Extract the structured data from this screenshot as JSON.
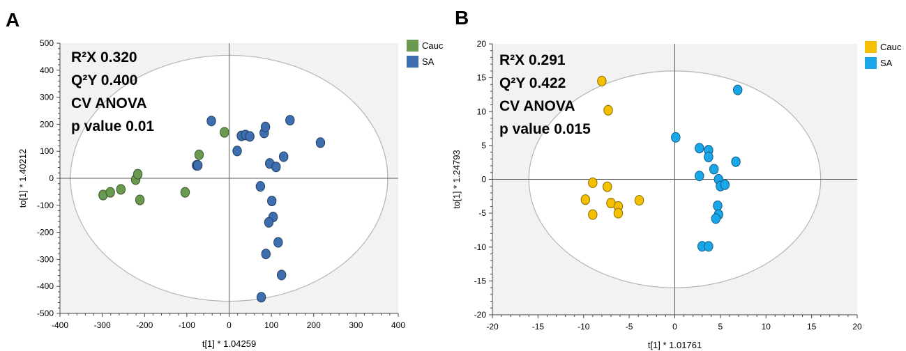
{
  "chart_data": [
    {
      "type": "scatter",
      "panel_label": "A",
      "xlabel": "t[1] * 1.04259",
      "ylabel": "to[1] * 1.40212",
      "xlim": [
        -400,
        400
      ],
      "ylim": [
        -500,
        500
      ],
      "xticks": [
        -400,
        -300,
        -200,
        -100,
        0,
        100,
        200,
        300,
        400
      ],
      "yticks": [
        -500,
        -400,
        -300,
        -200,
        -100,
        0,
        100,
        200,
        300,
        400,
        500
      ],
      "ellipse": {
        "rx": 375,
        "ry": 455
      },
      "grid": false,
      "legend_position": "top-right",
      "annotations": [
        "R²X 0.320",
        "Q²Y 0.400",
        "CV ANOVA",
        "p value 0.01"
      ],
      "series": [
        {
          "name": "Cauc",
          "color": "#6a9a4f",
          "points": [
            [
              -298,
              -62
            ],
            [
              -281,
              -52
            ],
            [
              -256,
              -41
            ],
            [
              -221,
              -5
            ],
            [
              -216,
              15
            ],
            [
              -211,
              -80
            ],
            [
              -104,
              -52
            ],
            [
              -71,
              87
            ],
            [
              -11,
              170
            ]
          ]
        },
        {
          "name": "SA",
          "color": "#3d6eb0",
          "points": [
            [
              -77,
              48
            ],
            [
              -42,
              212
            ],
            [
              -74,
              48
            ],
            [
              19,
              101
            ],
            [
              29,
              157
            ],
            [
              39,
              160
            ],
            [
              49,
              155
            ],
            [
              74,
              -30
            ],
            [
              83,
              168
            ],
            [
              86,
              190
            ],
            [
              96,
              55
            ],
            [
              101,
              -84
            ],
            [
              104,
              -143
            ],
            [
              111,
              42
            ],
            [
              116,
              -237
            ],
            [
              124,
              -358
            ],
            [
              129,
              80
            ],
            [
              144,
              215
            ],
            [
              216,
              132
            ],
            [
              94,
              -163
            ],
            [
              87,
              -280
            ],
            [
              76,
              -440
            ]
          ]
        }
      ]
    },
    {
      "type": "scatter",
      "panel_label": "B",
      "xlabel": "t[1] * 1.01761",
      "ylabel": "to[1] * 1.24793",
      "xlim": [
        -20,
        20
      ],
      "ylim": [
        -20,
        20
      ],
      "xticks": [
        -20,
        -15,
        -10,
        -5,
        0,
        5,
        10,
        15,
        20
      ],
      "yticks": [
        -20,
        -15,
        -10,
        -5,
        0,
        5,
        10,
        15,
        20
      ],
      "ellipse": {
        "rx": 16,
        "ry": 16
      },
      "grid": false,
      "legend_position": "top-right",
      "annotations": [
        "R²X 0.291",
        "Q²Y 0.422",
        "CV ANOVA",
        "p value 0.015"
      ],
      "series": [
        {
          "name": "Cauc",
          "color": "#f5c000",
          "points": [
            [
              -8.0,
              14.5
            ],
            [
              -7.3,
              10.2
            ],
            [
              -9.0,
              -0.5
            ],
            [
              -7.4,
              -1.1
            ],
            [
              -9.8,
              -3.0
            ],
            [
              -7.0,
              -3.5
            ],
            [
              -6.2,
              -4.0
            ],
            [
              -3.9,
              -3.1
            ],
            [
              -9.0,
              -5.2
            ],
            [
              -6.2,
              -5.0
            ]
          ]
        },
        {
          "name": "SA",
          "color": "#1aa7ea",
          "points": [
            [
              6.9,
              13.2
            ],
            [
              0.1,
              6.2
            ],
            [
              2.7,
              4.6
            ],
            [
              3.7,
              4.3
            ],
            [
              3.7,
              3.3
            ],
            [
              6.7,
              2.6
            ],
            [
              4.3,
              1.5
            ],
            [
              2.7,
              0.5
            ],
            [
              4.8,
              0.0
            ],
            [
              5.0,
              -1.0
            ],
            [
              5.5,
              -0.8
            ],
            [
              4.7,
              -3.9
            ],
            [
              4.8,
              -5.2
            ],
            [
              4.5,
              -5.8
            ],
            [
              3.0,
              -9.9
            ],
            [
              3.7,
              -9.9
            ]
          ]
        }
      ]
    }
  ]
}
